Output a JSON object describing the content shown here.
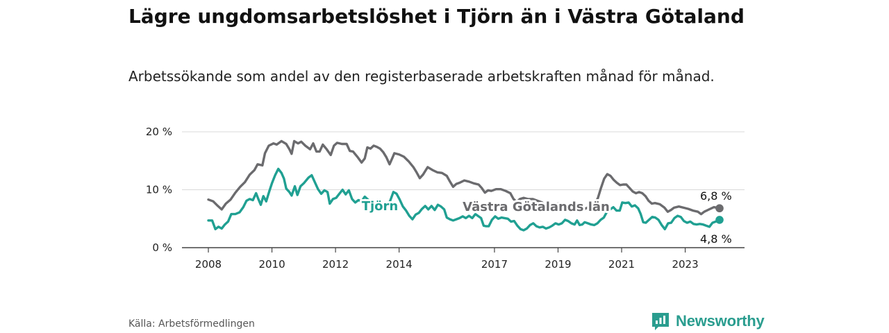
{
  "page": {
    "title": "Lägre ungdomsarbetslöshet i Tjörn än i Västra Götaland",
    "subtitle": "Arbetssökande som andel av den registerbaserade arbetskraften månad för månad.",
    "source": "Källa: Arbetsförmedlingen",
    "logo": "Newsworthy"
  },
  "colors": {
    "tjorn": "#20a092",
    "vg": "#6b6b6e",
    "grid": "#d9d9d9",
    "axis": "#444444"
  },
  "chart_data": {
    "type": "line",
    "title": "Lägre ungdomsarbetslöshet i Tjörn än i Västra Götaland",
    "xlabel": "",
    "ylabel": "",
    "xlim": [
      2008.0,
      2024.08
    ],
    "ylim": [
      0,
      20
    ],
    "grid": true,
    "y_ticks": [
      0,
      10,
      20
    ],
    "y_tick_labels": [
      "0 %",
      "10 %",
      "20 %"
    ],
    "x_ticks": [
      2008,
      2010,
      2012,
      2014,
      2017,
      2019,
      2021,
      2023
    ],
    "x_tick_labels": [
      "2008",
      "2010",
      "2012",
      "2014",
      "2017",
      "2019",
      "2021",
      "2023"
    ],
    "series": [
      {
        "name": "Västra Götalands län",
        "end_label": "6,8 %",
        "points": [
          [
            2008.0,
            8.3
          ],
          [
            2008.15,
            8.0
          ],
          [
            2008.3,
            7.2
          ],
          [
            2008.42,
            6.6
          ],
          [
            2008.55,
            7.6
          ],
          [
            2008.7,
            8.3
          ],
          [
            2008.85,
            9.5
          ],
          [
            2009.0,
            10.5
          ],
          [
            2009.15,
            11.3
          ],
          [
            2009.3,
            12.6
          ],
          [
            2009.45,
            13.4
          ],
          [
            2009.55,
            14.4
          ],
          [
            2009.7,
            14.2
          ],
          [
            2009.78,
            16.3
          ],
          [
            2009.9,
            17.6
          ],
          [
            2010.05,
            18.0
          ],
          [
            2010.15,
            17.8
          ],
          [
            2010.3,
            18.4
          ],
          [
            2010.45,
            17.9
          ],
          [
            2010.55,
            17.0
          ],
          [
            2010.62,
            16.2
          ],
          [
            2010.7,
            18.4
          ],
          [
            2010.82,
            18.0
          ],
          [
            2010.92,
            18.3
          ],
          [
            2011.05,
            17.6
          ],
          [
            2011.2,
            17.0
          ],
          [
            2011.3,
            18.0
          ],
          [
            2011.4,
            16.6
          ],
          [
            2011.5,
            16.6
          ],
          [
            2011.6,
            17.8
          ],
          [
            2011.72,
            17.0
          ],
          [
            2011.85,
            16.0
          ],
          [
            2011.95,
            17.6
          ],
          [
            2012.05,
            18.1
          ],
          [
            2012.2,
            17.9
          ],
          [
            2012.35,
            17.9
          ],
          [
            2012.45,
            16.7
          ],
          [
            2012.55,
            16.6
          ],
          [
            2012.7,
            15.6
          ],
          [
            2012.82,
            14.7
          ],
          [
            2012.92,
            15.4
          ],
          [
            2013.0,
            17.3
          ],
          [
            2013.1,
            17.1
          ],
          [
            2013.2,
            17.6
          ],
          [
            2013.3,
            17.4
          ],
          [
            2013.4,
            17.1
          ],
          [
            2013.5,
            16.5
          ],
          [
            2013.6,
            15.6
          ],
          [
            2013.7,
            14.4
          ],
          [
            2013.78,
            15.4
          ],
          [
            2013.85,
            16.3
          ],
          [
            2014.0,
            16.1
          ],
          [
            2014.15,
            15.7
          ],
          [
            2014.3,
            14.9
          ],
          [
            2014.45,
            13.9
          ],
          [
            2014.55,
            13.0
          ],
          [
            2014.65,
            12.0
          ],
          [
            2014.75,
            12.6
          ],
          [
            2014.9,
            13.9
          ],
          [
            2015.05,
            13.4
          ],
          [
            2015.2,
            13.0
          ],
          [
            2015.35,
            12.9
          ],
          [
            2015.5,
            12.4
          ],
          [
            2015.6,
            11.4
          ],
          [
            2015.7,
            10.5
          ],
          [
            2015.8,
            11.0
          ],
          [
            2015.9,
            11.2
          ],
          [
            2016.05,
            11.6
          ],
          [
            2016.2,
            11.4
          ],
          [
            2016.35,
            11.1
          ],
          [
            2016.5,
            10.9
          ],
          [
            2016.6,
            10.3
          ],
          [
            2016.7,
            9.5
          ],
          [
            2016.8,
            9.9
          ],
          [
            2016.9,
            9.8
          ],
          [
            2017.05,
            10.1
          ],
          [
            2017.2,
            10.1
          ],
          [
            2017.35,
            9.8
          ],
          [
            2017.5,
            9.4
          ],
          [
            2017.6,
            8.4
          ],
          [
            2017.7,
            7.9
          ],
          [
            2017.8,
            8.4
          ],
          [
            2017.92,
            8.6
          ],
          [
            2018.05,
            8.4
          ],
          [
            2018.2,
            8.4
          ],
          [
            2018.35,
            8.1
          ],
          [
            2018.5,
            7.8
          ],
          [
            2018.6,
            7.3
          ],
          [
            2018.7,
            6.9
          ],
          [
            2018.8,
            7.3
          ],
          [
            2018.92,
            7.5
          ],
          [
            2019.05,
            7.7
          ],
          [
            2019.2,
            7.5
          ],
          [
            2019.35,
            7.3
          ],
          [
            2019.5,
            7.0
          ],
          [
            2019.6,
            6.6
          ],
          [
            2019.7,
            6.2
          ],
          [
            2019.8,
            6.6
          ],
          [
            2019.92,
            6.9
          ],
          [
            2020.05,
            7.2
          ],
          [
            2020.15,
            7.7
          ],
          [
            2020.25,
            8.5
          ],
          [
            2020.35,
            10.3
          ],
          [
            2020.45,
            11.9
          ],
          [
            2020.55,
            12.7
          ],
          [
            2020.65,
            12.4
          ],
          [
            2020.75,
            11.7
          ],
          [
            2020.85,
            11.2
          ],
          [
            2020.95,
            10.8
          ],
          [
            2021.05,
            10.9
          ],
          [
            2021.15,
            10.9
          ],
          [
            2021.25,
            10.3
          ],
          [
            2021.35,
            9.7
          ],
          [
            2021.45,
            9.4
          ],
          [
            2021.55,
            9.6
          ],
          [
            2021.65,
            9.4
          ],
          [
            2021.75,
            8.9
          ],
          [
            2021.85,
            8.1
          ],
          [
            2021.95,
            7.6
          ],
          [
            2022.05,
            7.7
          ],
          [
            2022.2,
            7.5
          ],
          [
            2022.35,
            6.9
          ],
          [
            2022.45,
            6.2
          ],
          [
            2022.55,
            6.5
          ],
          [
            2022.65,
            6.9
          ],
          [
            2022.8,
            7.1
          ],
          [
            2022.95,
            6.9
          ],
          [
            2023.1,
            6.7
          ],
          [
            2023.25,
            6.4
          ],
          [
            2023.4,
            6.2
          ],
          [
            2023.5,
            5.8
          ],
          [
            2023.6,
            6.2
          ],
          [
            2023.75,
            6.6
          ],
          [
            2023.9,
            7.0
          ],
          [
            2024.08,
            6.8
          ]
        ]
      },
      {
        "name": "Tjörn",
        "end_label": "4,8 %",
        "points": [
          [
            2008.0,
            4.7
          ],
          [
            2008.12,
            4.7
          ],
          [
            2008.22,
            3.2
          ],
          [
            2008.32,
            3.6
          ],
          [
            2008.42,
            3.3
          ],
          [
            2008.52,
            4.0
          ],
          [
            2008.62,
            4.5
          ],
          [
            2008.72,
            5.8
          ],
          [
            2008.85,
            5.8
          ],
          [
            2008.98,
            6.1
          ],
          [
            2009.1,
            7.0
          ],
          [
            2009.2,
            8.1
          ],
          [
            2009.3,
            8.4
          ],
          [
            2009.4,
            8.2
          ],
          [
            2009.5,
            9.4
          ],
          [
            2009.58,
            8.3
          ],
          [
            2009.65,
            7.4
          ],
          [
            2009.73,
            8.9
          ],
          [
            2009.82,
            8.0
          ],
          [
            2009.92,
            9.8
          ],
          [
            2010.0,
            11.1
          ],
          [
            2010.1,
            12.5
          ],
          [
            2010.2,
            13.6
          ],
          [
            2010.3,
            12.9
          ],
          [
            2010.38,
            11.9
          ],
          [
            2010.45,
            10.2
          ],
          [
            2010.55,
            9.6
          ],
          [
            2010.62,
            9.0
          ],
          [
            2010.72,
            10.6
          ],
          [
            2010.8,
            9.1
          ],
          [
            2010.9,
            10.6
          ],
          [
            2011.0,
            11.1
          ],
          [
            2011.15,
            12.1
          ],
          [
            2011.25,
            12.5
          ],
          [
            2011.35,
            11.3
          ],
          [
            2011.45,
            10.1
          ],
          [
            2011.55,
            9.3
          ],
          [
            2011.65,
            9.9
          ],
          [
            2011.75,
            9.6
          ],
          [
            2011.82,
            7.6
          ],
          [
            2011.92,
            8.4
          ],
          [
            2012.02,
            8.6
          ],
          [
            2012.12,
            9.3
          ],
          [
            2012.22,
            10.0
          ],
          [
            2012.32,
            9.2
          ],
          [
            2012.42,
            9.9
          ],
          [
            2012.52,
            8.4
          ],
          [
            2012.62,
            7.8
          ],
          [
            2012.72,
            8.2
          ],
          [
            2012.82,
            8.0
          ],
          [
            2012.92,
            8.8
          ],
          [
            2013.02,
            8.3
          ],
          [
            2013.12,
            8.0
          ],
          [
            2013.22,
            7.6
          ],
          [
            2013.32,
            7.2
          ],
          [
            2013.42,
            7.7
          ],
          [
            2013.52,
            7.5
          ],
          [
            2013.62,
            7.0
          ],
          [
            2013.72,
            8.1
          ],
          [
            2013.82,
            9.6
          ],
          [
            2013.92,
            9.3
          ],
          [
            2014.02,
            8.3
          ],
          [
            2014.12,
            7.1
          ],
          [
            2014.22,
            6.4
          ],
          [
            2014.32,
            5.5
          ],
          [
            2014.42,
            4.9
          ],
          [
            2014.52,
            5.7
          ],
          [
            2014.62,
            6.0
          ],
          [
            2014.72,
            6.7
          ],
          [
            2014.82,
            7.2
          ],
          [
            2014.92,
            6.6
          ],
          [
            2015.02,
            7.2
          ],
          [
            2015.12,
            6.5
          ],
          [
            2015.22,
            7.4
          ],
          [
            2015.32,
            7.1
          ],
          [
            2015.42,
            6.6
          ],
          [
            2015.5,
            5.2
          ],
          [
            2015.6,
            4.9
          ],
          [
            2015.7,
            4.7
          ],
          [
            2015.8,
            4.9
          ],
          [
            2015.9,
            5.1
          ],
          [
            2016.0,
            5.4
          ],
          [
            2016.1,
            5.1
          ],
          [
            2016.2,
            5.5
          ],
          [
            2016.3,
            5.1
          ],
          [
            2016.4,
            5.8
          ],
          [
            2016.5,
            5.4
          ],
          [
            2016.58,
            5.1
          ],
          [
            2016.66,
            3.8
          ],
          [
            2016.74,
            3.7
          ],
          [
            2016.82,
            3.7
          ],
          [
            2016.92,
            4.8
          ],
          [
            2017.02,
            5.4
          ],
          [
            2017.12,
            5.0
          ],
          [
            2017.22,
            5.2
          ],
          [
            2017.32,
            5.1
          ],
          [
            2017.42,
            5.0
          ],
          [
            2017.52,
            4.5
          ],
          [
            2017.62,
            4.6
          ],
          [
            2017.72,
            3.8
          ],
          [
            2017.82,
            3.2
          ],
          [
            2017.92,
            3.0
          ],
          [
            2018.02,
            3.3
          ],
          [
            2018.12,
            3.9
          ],
          [
            2018.22,
            4.2
          ],
          [
            2018.32,
            3.7
          ],
          [
            2018.42,
            3.5
          ],
          [
            2018.52,
            3.6
          ],
          [
            2018.62,
            3.3
          ],
          [
            2018.72,
            3.5
          ],
          [
            2018.82,
            3.8
          ],
          [
            2018.92,
            4.2
          ],
          [
            2019.02,
            4.0
          ],
          [
            2019.12,
            4.2
          ],
          [
            2019.22,
            4.8
          ],
          [
            2019.32,
            4.6
          ],
          [
            2019.42,
            4.2
          ],
          [
            2019.52,
            4.0
          ],
          [
            2019.6,
            4.7
          ],
          [
            2019.68,
            3.9
          ],
          [
            2019.76,
            4.0
          ],
          [
            2019.84,
            4.4
          ],
          [
            2019.94,
            4.2
          ],
          [
            2020.04,
            4.0
          ],
          [
            2020.14,
            3.9
          ],
          [
            2020.24,
            4.2
          ],
          [
            2020.34,
            4.8
          ],
          [
            2020.44,
            5.2
          ],
          [
            2020.54,
            6.2
          ],
          [
            2020.64,
            6.6
          ],
          [
            2020.74,
            7.0
          ],
          [
            2020.84,
            6.4
          ],
          [
            2020.94,
            6.4
          ],
          [
            2021.02,
            7.8
          ],
          [
            2021.12,
            7.7
          ],
          [
            2021.22,
            7.8
          ],
          [
            2021.32,
            7.1
          ],
          [
            2021.42,
            7.3
          ],
          [
            2021.52,
            6.8
          ],
          [
            2021.6,
            5.8
          ],
          [
            2021.68,
            4.4
          ],
          [
            2021.76,
            4.3
          ],
          [
            2021.86,
            4.8
          ],
          [
            2021.96,
            5.3
          ],
          [
            2022.06,
            5.2
          ],
          [
            2022.16,
            4.8
          ],
          [
            2022.26,
            3.9
          ],
          [
            2022.36,
            3.2
          ],
          [
            2022.46,
            4.2
          ],
          [
            2022.56,
            4.3
          ],
          [
            2022.66,
            5.1
          ],
          [
            2022.76,
            5.5
          ],
          [
            2022.86,
            5.3
          ],
          [
            2022.96,
            4.6
          ],
          [
            2023.06,
            4.3
          ],
          [
            2023.16,
            4.5
          ],
          [
            2023.26,
            4.1
          ],
          [
            2023.36,
            4.0
          ],
          [
            2023.46,
            4.1
          ],
          [
            2023.56,
            4.0
          ],
          [
            2023.66,
            3.8
          ],
          [
            2023.76,
            3.6
          ],
          [
            2023.86,
            4.3
          ],
          [
            2023.96,
            4.5
          ],
          [
            2024.08,
            4.8
          ]
        ]
      }
    ]
  }
}
